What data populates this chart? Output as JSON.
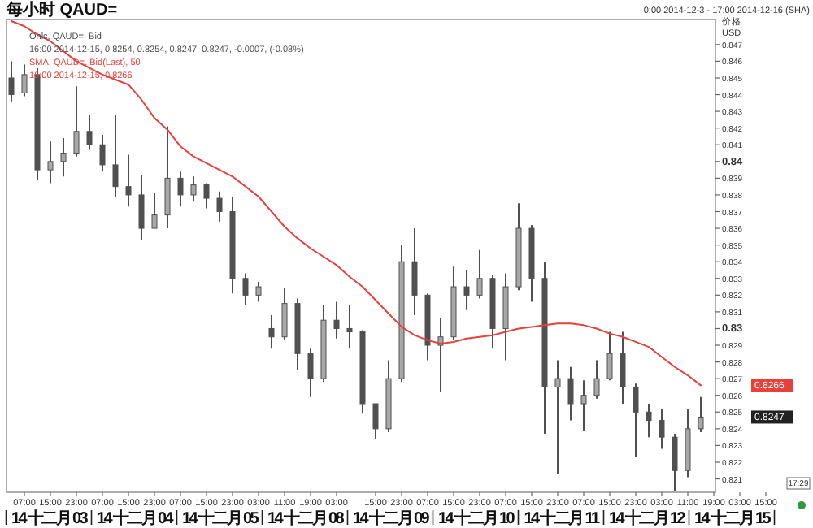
{
  "chart_data": {
    "type": "candlestick",
    "title": "每小时 QAUD=",
    "subtitle": "0:00 2014-12-3 - 17:00 2014-12-16 (SHA)",
    "ylabel": "价格 USD",
    "legend": "top left",
    "categories": [
      null,
      "07:00",
      null,
      "15:00",
      null,
      "23:00",
      null,
      "07:00",
      null,
      "15:00",
      null,
      "23:00",
      null,
      "07:00",
      null,
      "15:00",
      null,
      "23:00",
      null,
      "03:00",
      null,
      "11:00",
      null,
      "19:00",
      null,
      "03:00",
      null,
      null,
      "15:00",
      null,
      "23:00",
      null,
      "07:00",
      null,
      "15:00",
      null,
      "23:00",
      null,
      "07:00",
      null,
      "15:00",
      null,
      "23:00",
      null,
      "07:00",
      null,
      "15:00",
      null,
      "23:00",
      null,
      "03:00",
      null,
      "11:00",
      null,
      "19:00",
      null,
      "03:00",
      null,
      "15:00"
    ],
    "ylim": [
      0.8202,
      0.8485
    ],
    "yticks": [
      0.821,
      0.822,
      0.823,
      0.824,
      0.825,
      0.826,
      0.827,
      0.828,
      0.829,
      0.83,
      0.831,
      0.832,
      0.833,
      0.834,
      0.835,
      0.836,
      0.837,
      0.838,
      0.839,
      0.84,
      0.841,
      0.842,
      0.843,
      0.844,
      0.845,
      0.846,
      0.847
    ],
    "series": [
      {
        "name": "Ohlc, QAUD=, Bid",
        "color": "#505050",
        "ohlc": [
          [
            0.845,
            0.846,
            0.8436,
            0.844
          ],
          [
            0.8441,
            0.8458,
            0.8439,
            0.8452
          ],
          [
            0.8452,
            0.8456,
            0.8389,
            0.8395
          ],
          [
            0.8395,
            0.8412,
            0.8387,
            0.84
          ],
          [
            0.84,
            0.8414,
            0.8391,
            0.8405
          ],
          [
            0.8405,
            0.8445,
            0.8403,
            0.8418
          ],
          [
            0.8418,
            0.8428,
            0.8407,
            0.841
          ],
          [
            0.841,
            0.8416,
            0.8394,
            0.8398
          ],
          [
            0.8398,
            0.8428,
            0.8379,
            0.8385
          ],
          [
            0.8385,
            0.8404,
            0.8373,
            0.838
          ],
          [
            0.838,
            0.8392,
            0.8353,
            0.836
          ],
          [
            0.836,
            0.8381,
            0.836,
            0.8368
          ],
          [
            0.8368,
            0.8421,
            0.836,
            0.839
          ],
          [
            0.839,
            0.8394,
            0.8373,
            0.838
          ],
          [
            0.838,
            0.8391,
            0.8376,
            0.8386
          ],
          [
            0.8386,
            0.8387,
            0.8372,
            0.8378
          ],
          [
            0.8378,
            0.8382,
            0.8364,
            0.837
          ],
          [
            0.837,
            0.8379,
            0.8321,
            0.833
          ],
          [
            0.833,
            0.8333,
            0.8314,
            0.832
          ],
          [
            0.832,
            0.8328,
            0.8316,
            0.8325
          ],
          [
            0.83,
            0.8308,
            0.8288,
            0.8295
          ],
          [
            0.8295,
            0.8324,
            0.8293,
            0.8315
          ],
          [
            0.8315,
            0.8318,
            0.8275,
            0.8285
          ],
          [
            0.8285,
            0.8288,
            0.8259,
            0.827
          ],
          [
            0.827,
            0.8314,
            0.8268,
            0.8305
          ],
          [
            0.8305,
            0.8316,
            0.8294,
            0.83
          ],
          [
            0.83,
            0.8314,
            0.8288,
            0.8298
          ],
          [
            0.8298,
            0.8299,
            0.8249,
            0.8255
          ],
          [
            0.8255,
            0.8255,
            0.8234,
            0.824
          ],
          [
            0.824,
            0.8281,
            0.8238,
            0.827
          ],
          [
            0.827,
            0.835,
            0.8268,
            0.834
          ],
          [
            0.834,
            0.836,
            0.8308,
            0.832
          ],
          [
            0.832,
            0.8321,
            0.8281,
            0.829
          ],
          [
            0.829,
            0.8306,
            0.8262,
            0.8295
          ],
          [
            0.8295,
            0.8337,
            0.8293,
            0.8325
          ],
          [
            0.8325,
            0.8335,
            0.8311,
            0.832
          ],
          [
            0.832,
            0.8347,
            0.8318,
            0.833
          ],
          [
            0.833,
            0.8332,
            0.8288,
            0.83
          ],
          [
            0.83,
            0.8333,
            0.8281,
            0.8325
          ],
          [
            0.8325,
            0.8375,
            0.8323,
            0.836
          ],
          [
            0.836,
            0.8362,
            0.8316,
            0.833
          ],
          [
            0.833,
            0.834,
            0.8237,
            0.8265
          ],
          [
            0.8265,
            0.8281,
            0.8213,
            0.827
          ],
          [
            0.827,
            0.8277,
            0.8245,
            0.8255
          ],
          [
            0.8255,
            0.8269,
            0.8239,
            0.826
          ],
          [
            0.826,
            0.8281,
            0.8258,
            0.827
          ],
          [
            0.827,
            0.8298,
            0.8269,
            0.8285
          ],
          [
            0.8285,
            0.8298,
            0.8255,
            0.8265
          ],
          [
            0.8265,
            0.8267,
            0.8223,
            0.825
          ],
          [
            0.825,
            0.8255,
            0.8235,
            0.8245
          ],
          [
            0.8245,
            0.8252,
            0.8228,
            0.8235
          ],
          [
            0.8235,
            0.8237,
            0.8203,
            0.8215
          ],
          [
            0.8215,
            0.8252,
            0.8211,
            0.824
          ],
          [
            0.824,
            0.8259,
            0.8238,
            0.8247
          ],
          null,
          null,
          null,
          null,
          null
        ]
      },
      {
        "type": "line",
        "name": "SMA, QAUD=, Bid(Last), 50",
        "color": "#e8413c",
        "values": [
          0.8484,
          0.8481,
          0.8476,
          0.8472,
          0.8466,
          0.846,
          0.8456,
          0.8452,
          0.8449,
          0.8446,
          0.8437,
          0.8426,
          0.8419,
          0.8409,
          0.8403,
          0.8399,
          0.8395,
          0.8391,
          0.8385,
          0.8379,
          0.837,
          0.8361,
          0.8354,
          0.8348,
          0.8343,
          0.8338,
          0.8331,
          0.8325,
          0.8317,
          0.8309,
          0.8301,
          0.8296,
          0.8293,
          0.8291,
          0.8292,
          0.8294,
          0.8295,
          0.8296,
          0.8298,
          0.83,
          0.8301,
          0.8302,
          0.8303,
          0.8303,
          0.8302,
          0.83,
          0.8297,
          0.8295,
          0.8292,
          0.8289,
          0.8283,
          0.8277,
          0.8272,
          0.8266,
          null,
          null,
          null,
          null,
          null
        ]
      }
    ],
    "annotations": [
      "16:00 2014-12-15, 0.8254, 0.8254, 0.8247, 0.8247, -0.0007, (-0.08%)",
      "16:00 2014-12-15, 0.8266",
      {
        "text": "0.8266",
        "y": 0.8266
      },
      {
        "text": "0.8247",
        "y": 0.8247
      },
      "14 十二月 03",
      "14 十二月 04",
      "14 十二月 05",
      "14 十二月 08",
      "14 十二月 09",
      "14 十二月 10",
      "14 十二月 11",
      "14 十二月 12",
      "14 十二月 15",
      "17:29"
    ]
  }
}
